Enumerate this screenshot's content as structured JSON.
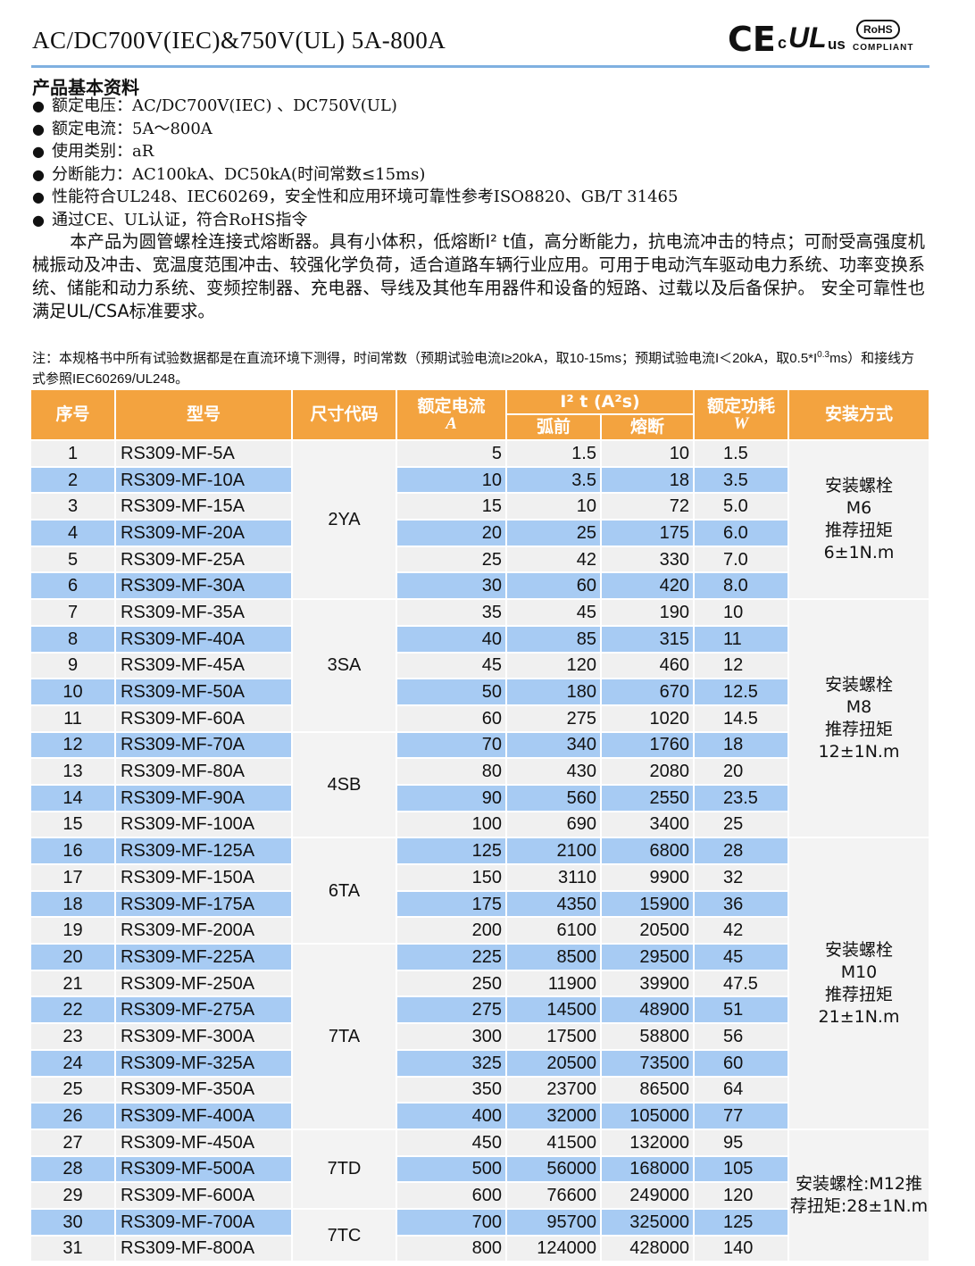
{
  "header": {
    "title": "AC/DC700V(IEC)&750V(UL) 5A-800A",
    "logos": [
      "CE",
      "c",
      "UL",
      "us",
      "RoHS",
      "COMPLIANT"
    ]
  },
  "section": {
    "heading": "产品基本资料",
    "bullets": [
      "额定电压：AC/DC700V(IEC) 、DC750V(UL)",
      "额定电流：5A～800A",
      "使用类别：aR",
      "分断能力：AC100kA、DC50kA(时间常数≤15ms)",
      "性能符合UL248、IEC60269，安全性和应用环境可靠性参考ISO8820、GB/T 31465",
      "通过CE、UL认证，符合RoHS指令"
    ],
    "paragraph": "本产品为圆管螺栓连接式熔断器。具有小体积，低熔断I² t值，高分断能力，抗电流冲击的特点；可耐受高强度机械振动及冲击、宽温度范围冲击、较强化学负荷，适合道路车辆行业应用。可用于电动汽车驱动电力系统、功率变换系统、储能和动力系统、变频控制器、充电器、导线及其他车用器件和设备的短路、过载以及后备保护。 安全可靠性也满足UL/CSA标准要求。"
  },
  "note": {
    "before": "注：本规格书中所有试验数据都是在直流环境下测得，时间常数（预期试验电流I≥20kA，取10-15ms；预期试验电流I＜20kA，取0.5*I",
    "sup": "0.3",
    "after": "ms）和接线方式参照IEC60269/UL248。"
  },
  "table": {
    "headers": {
      "no": "序号",
      "model": "型号",
      "size": "尺寸代码",
      "current": "额定电流",
      "current_unit": "A",
      "i2t": "I² t (A²s)",
      "prearc": "弧前",
      "total": "熔断",
      "power": "额定功耗",
      "power_unit": "W",
      "mount": "安装方式"
    },
    "rows": [
      [
        "1",
        "RS309-MF-5A",
        "2YA",
        "5",
        "1.5",
        "10",
        "1.5",
        [
          "安装螺栓",
          "M6",
          "推荐扭矩",
          "6±1N.m"
        ]
      ],
      [
        "2",
        "RS309-MF-10A",
        null,
        "10",
        "3.5",
        "18",
        "3.5",
        null
      ],
      [
        "3",
        "RS309-MF-15A",
        null,
        "15",
        "10",
        "72",
        "5.0",
        null
      ],
      [
        "4",
        "RS309-MF-20A",
        null,
        "20",
        "25",
        "175",
        "6.0",
        null
      ],
      [
        "5",
        "RS309-MF-25A",
        null,
        "25",
        "42",
        "330",
        "7.0",
        null
      ],
      [
        "6",
        "RS309-MF-30A",
        null,
        "30",
        "60",
        "420",
        "8.0",
        null
      ],
      [
        "7",
        "RS309-MF-35A",
        "3SA",
        "35",
        "45",
        "190",
        "10",
        [
          "安装螺栓",
          "M8",
          "推荐扭矩",
          "12±1N.m"
        ]
      ],
      [
        "8",
        "RS309-MF-40A",
        null,
        "40",
        "85",
        "315",
        "11",
        null
      ],
      [
        "9",
        "RS309-MF-45A",
        null,
        "45",
        "120",
        "460",
        "12",
        null
      ],
      [
        "10",
        "RS309-MF-50A",
        null,
        "50",
        "180",
        "670",
        "12.5",
        null
      ],
      [
        "11",
        "RS309-MF-60A",
        null,
        "60",
        "275",
        "1020",
        "14.5",
        null
      ],
      [
        "12",
        "RS309-MF-70A",
        "4SB",
        "70",
        "340",
        "1760",
        "18",
        null
      ],
      [
        "13",
        "RS309-MF-80A",
        null,
        "80",
        "430",
        "2080",
        "20",
        null
      ],
      [
        "14",
        "RS309-MF-90A",
        null,
        "90",
        "560",
        "2550",
        "23.5",
        null
      ],
      [
        "15",
        "RS309-MF-100A",
        null,
        "100",
        "690",
        "3400",
        "25",
        null
      ],
      [
        "16",
        "RS309-MF-125A",
        "6TA",
        "125",
        "2100",
        "6800",
        "28",
        [
          "安装螺栓",
          "M10",
          "推荐扭矩",
          "21±1N.m"
        ]
      ],
      [
        "17",
        "RS309-MF-150A",
        null,
        "150",
        "3110",
        "9900",
        "32",
        null
      ],
      [
        "18",
        "RS309-MF-175A",
        null,
        "175",
        "4350",
        "15900",
        "36",
        null
      ],
      [
        "19",
        "RS309-MF-200A",
        null,
        "200",
        "6100",
        "20500",
        "42",
        null
      ],
      [
        "20",
        "RS309-MF-225A",
        "7TA",
        "225",
        "8500",
        "29500",
        "45",
        null
      ],
      [
        "21",
        "RS309-MF-250A",
        null,
        "250",
        "11900",
        "39900",
        "47.5",
        null
      ],
      [
        "22",
        "RS309-MF-275A",
        null,
        "275",
        "14500",
        "48900",
        "51",
        null
      ],
      [
        "23",
        "RS309-MF-300A",
        null,
        "300",
        "17500",
        "58800",
        "56",
        null
      ],
      [
        "24",
        "RS309-MF-325A",
        null,
        "325",
        "20500",
        "73500",
        "60",
        null
      ],
      [
        "25",
        "RS309-MF-350A",
        null,
        "350",
        "23700",
        "86500",
        "64",
        null
      ],
      [
        "26",
        "RS309-MF-400A",
        null,
        "400",
        "32000",
        "105000",
        "77",
        null
      ],
      [
        "27",
        "RS309-MF-450A",
        "7TD",
        "450",
        "41500",
        "132000",
        "95",
        "安装螺栓:M12推荐扭矩:28±1N.m"
      ],
      [
        "28",
        "RS309-MF-500A",
        null,
        "500",
        "56000",
        "168000",
        "105",
        null
      ],
      [
        "29",
        "RS309-MF-600A",
        null,
        "600",
        "76600",
        "249000",
        "120",
        null
      ],
      [
        "30",
        "RS309-MF-700A",
        "7TC",
        "700",
        "95700",
        "325000",
        "125",
        null
      ],
      [
        "31",
        "RS309-MF-800A",
        null,
        "800",
        "124000",
        "428000",
        "140",
        null
      ]
    ]
  }
}
